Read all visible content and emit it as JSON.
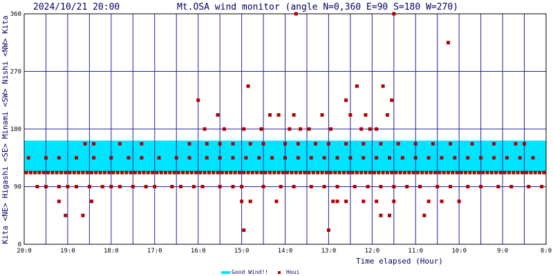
{
  "header": {
    "timestamp": "2024/10/21 20:00",
    "title": "Mt.OSA wind monitor (angle N=0,360 E=90 S=180 W=270)"
  },
  "left_axis_label": "Kita <NE> Higashi <SE> Minami <SW> Nishi <NW> Kita",
  "x_label": "Time elapsed (Hour)",
  "legend": [
    {
      "label": "Good Wind!!",
      "color": "#00e5ff",
      "kind": "band"
    },
    {
      "label": "Houi",
      "color": "#b00000",
      "kind": "marker"
    }
  ],
  "chart_data": {
    "type": "scatter",
    "title": "Mt.OSA wind monitor (angle N=0,360 E=90 S=180 W=270)",
    "xlabel": "Time elapsed (Hour)",
    "ylabel": "Kita <NE> Higashi <SE> Minami <SW> Nishi <NW> Kita",
    "x_ticks": [
      "20:0",
      "19:0",
      "18:0",
      "17:0",
      "16:0",
      "15:0",
      "14:0",
      "13:0",
      "12:0",
      "11:0",
      "10:0",
      "9:0",
      "8:0"
    ],
    "y_ticks": [
      0,
      90,
      180,
      270,
      360
    ],
    "ylim": [
      0,
      360
    ],
    "xlim_hours_elapsed": [
      0,
      12
    ],
    "good_wind_band": [
      112,
      162
    ],
    "grid": true,
    "series": [
      {
        "name": "Houi",
        "color": "#b00000",
        "marker": "square",
        "points": [
          [
            0.05,
            112
          ],
          [
            0.15,
            112
          ],
          [
            0.25,
            112
          ],
          [
            0.35,
            112
          ],
          [
            0.45,
            112
          ],
          [
            0.55,
            112
          ],
          [
            0.65,
            112
          ],
          [
            0.75,
            112
          ],
          [
            0.85,
            112
          ],
          [
            0.95,
            112
          ],
          [
            1.05,
            112
          ],
          [
            1.15,
            112
          ],
          [
            1.25,
            112
          ],
          [
            1.35,
            112
          ],
          [
            1.45,
            112
          ],
          [
            1.55,
            112
          ],
          [
            1.65,
            112
          ],
          [
            1.75,
            112
          ],
          [
            1.85,
            112
          ],
          [
            1.95,
            112
          ],
          [
            2.05,
            112
          ],
          [
            2.15,
            112
          ],
          [
            2.25,
            112
          ],
          [
            2.35,
            112
          ],
          [
            2.45,
            112
          ],
          [
            2.55,
            112
          ],
          [
            2.65,
            112
          ],
          [
            2.75,
            112
          ],
          [
            2.85,
            112
          ],
          [
            2.95,
            112
          ],
          [
            3.05,
            112
          ],
          [
            3.15,
            112
          ],
          [
            3.25,
            112
          ],
          [
            3.35,
            112
          ],
          [
            3.45,
            112
          ],
          [
            3.55,
            112
          ],
          [
            3.65,
            112
          ],
          [
            3.75,
            112
          ],
          [
            3.85,
            112
          ],
          [
            3.95,
            112
          ],
          [
            4.05,
            112
          ],
          [
            4.15,
            112
          ],
          [
            4.25,
            112
          ],
          [
            4.35,
            112
          ],
          [
            4.45,
            112
          ],
          [
            4.55,
            112
          ],
          [
            4.65,
            112
          ],
          [
            4.75,
            112
          ],
          [
            4.85,
            112
          ],
          [
            4.95,
            112
          ],
          [
            5.05,
            112
          ],
          [
            5.15,
            112
          ],
          [
            5.25,
            112
          ],
          [
            5.35,
            112
          ],
          [
            5.45,
            112
          ],
          [
            5.55,
            112
          ],
          [
            5.65,
            112
          ],
          [
            5.75,
            112
          ],
          [
            5.85,
            112
          ],
          [
            5.95,
            112
          ],
          [
            6.05,
            112
          ],
          [
            6.15,
            112
          ],
          [
            6.25,
            112
          ],
          [
            6.35,
            112
          ],
          [
            6.45,
            112
          ],
          [
            6.55,
            112
          ],
          [
            6.65,
            112
          ],
          [
            6.75,
            112
          ],
          [
            6.85,
            112
          ],
          [
            6.95,
            112
          ],
          [
            7.05,
            112
          ],
          [
            7.15,
            112
          ],
          [
            7.25,
            112
          ],
          [
            7.35,
            112
          ],
          [
            7.45,
            112
          ],
          [
            7.55,
            112
          ],
          [
            7.65,
            112
          ],
          [
            7.75,
            112
          ],
          [
            7.85,
            112
          ],
          [
            7.95,
            112
          ],
          [
            8.05,
            112
          ],
          [
            8.15,
            112
          ],
          [
            8.25,
            112
          ],
          [
            8.35,
            112
          ],
          [
            8.45,
            112
          ],
          [
            8.55,
            112
          ],
          [
            8.65,
            112
          ],
          [
            8.75,
            112
          ],
          [
            8.85,
            112
          ],
          [
            8.95,
            112
          ],
          [
            9.05,
            112
          ],
          [
            9.15,
            112
          ],
          [
            9.25,
            112
          ],
          [
            9.35,
            112
          ],
          [
            9.45,
            112
          ],
          [
            9.55,
            112
          ],
          [
            9.65,
            112
          ],
          [
            9.75,
            112
          ],
          [
            9.85,
            112
          ],
          [
            9.95,
            112
          ],
          [
            10.05,
            112
          ],
          [
            10.15,
            112
          ],
          [
            10.25,
            112
          ],
          [
            10.35,
            112
          ],
          [
            10.45,
            112
          ],
          [
            10.55,
            112
          ],
          [
            10.65,
            112
          ],
          [
            10.75,
            112
          ],
          [
            10.85,
            112
          ],
          [
            10.95,
            112
          ],
          [
            11.05,
            112
          ],
          [
            11.15,
            112
          ],
          [
            11.25,
            112
          ],
          [
            11.35,
            112
          ],
          [
            11.45,
            112
          ],
          [
            11.55,
            112
          ],
          [
            11.65,
            112
          ],
          [
            11.75,
            112
          ],
          [
            11.85,
            112
          ],
          [
            11.95,
            112
          ],
          [
            0.1,
            135
          ],
          [
            0.5,
            135
          ],
          [
            0.8,
            135
          ],
          [
            1.2,
            135
          ],
          [
            1.6,
            135
          ],
          [
            2.0,
            135
          ],
          [
            2.4,
            135
          ],
          [
            2.7,
            135
          ],
          [
            3.1,
            135
          ],
          [
            3.5,
            135
          ],
          [
            3.8,
            135
          ],
          [
            4.2,
            135
          ],
          [
            4.5,
            135
          ],
          [
            4.8,
            135
          ],
          [
            5.1,
            135
          ],
          [
            5.4,
            135
          ],
          [
            5.7,
            135
          ],
          [
            6.0,
            135
          ],
          [
            6.3,
            135
          ],
          [
            6.6,
            135
          ],
          [
            6.9,
            135
          ],
          [
            7.2,
            135
          ],
          [
            7.5,
            135
          ],
          [
            7.8,
            135
          ],
          [
            8.1,
            135
          ],
          [
            8.4,
            135
          ],
          [
            8.7,
            135
          ],
          [
            9.0,
            135
          ],
          [
            9.3,
            135
          ],
          [
            9.6,
            135
          ],
          [
            9.9,
            135
          ],
          [
            10.2,
            135
          ],
          [
            10.5,
            135
          ],
          [
            10.8,
            135
          ],
          [
            11.1,
            135
          ],
          [
            11.4,
            135
          ],
          [
            11.7,
            135
          ],
          [
            1.4,
            157
          ],
          [
            1.6,
            157
          ],
          [
            2.2,
            157
          ],
          [
            2.7,
            157
          ],
          [
            3.8,
            157
          ],
          [
            4.2,
            157
          ],
          [
            4.5,
            157
          ],
          [
            4.8,
            157
          ],
          [
            5.2,
            157
          ],
          [
            5.5,
            157
          ],
          [
            6.0,
            157
          ],
          [
            6.3,
            157
          ],
          [
            6.7,
            157
          ],
          [
            7.0,
            157
          ],
          [
            7.4,
            157
          ],
          [
            7.8,
            157
          ],
          [
            8.2,
            157
          ],
          [
            8.6,
            157
          ],
          [
            9.0,
            157
          ],
          [
            9.4,
            157
          ],
          [
            9.8,
            157
          ],
          [
            10.3,
            157
          ],
          [
            10.8,
            157
          ],
          [
            11.3,
            157
          ],
          [
            11.5,
            157
          ],
          [
            0.3,
            90
          ],
          [
            0.5,
            90
          ],
          [
            0.8,
            90
          ],
          [
            1.0,
            90
          ],
          [
            1.2,
            90
          ],
          [
            1.5,
            90
          ],
          [
            1.8,
            90
          ],
          [
            2.0,
            90
          ],
          [
            2.2,
            90
          ],
          [
            2.5,
            90
          ],
          [
            2.8,
            90
          ],
          [
            3.0,
            90
          ],
          [
            3.4,
            90
          ],
          [
            3.6,
            90
          ],
          [
            3.9,
            90
          ],
          [
            4.1,
            90
          ],
          [
            4.5,
            90
          ],
          [
            4.8,
            90
          ],
          [
            5.0,
            90
          ],
          [
            5.5,
            90
          ],
          [
            5.9,
            90
          ],
          [
            6.2,
            90
          ],
          [
            6.6,
            90
          ],
          [
            6.9,
            90
          ],
          [
            7.2,
            90
          ],
          [
            7.6,
            90
          ],
          [
            7.9,
            90
          ],
          [
            8.2,
            90
          ],
          [
            8.5,
            90
          ],
          [
            8.8,
            90
          ],
          [
            9.1,
            90
          ],
          [
            9.5,
            90
          ],
          [
            9.8,
            90
          ],
          [
            10.2,
            90
          ],
          [
            10.5,
            90
          ],
          [
            10.9,
            90
          ],
          [
            11.2,
            90
          ],
          [
            11.6,
            90
          ],
          [
            11.9,
            90
          ],
          [
            0.8,
            67
          ],
          [
            0.95,
            45
          ],
          [
            1.35,
            45
          ],
          [
            1.55,
            67
          ],
          [
            5.05,
            22
          ],
          [
            5.0,
            67
          ],
          [
            5.2,
            67
          ],
          [
            5.8,
            67
          ],
          [
            7.0,
            22
          ],
          [
            7.1,
            67
          ],
          [
            7.2,
            67
          ],
          [
            7.4,
            67
          ],
          [
            7.8,
            67
          ],
          [
            8.1,
            67
          ],
          [
            8.2,
            45
          ],
          [
            8.4,
            45
          ],
          [
            8.5,
            67
          ],
          [
            9.2,
            45
          ],
          [
            9.3,
            67
          ],
          [
            9.6,
            67
          ],
          [
            10.0,
            67
          ],
          [
            4.0,
            225
          ],
          [
            4.15,
            180
          ],
          [
            4.45,
            202
          ],
          [
            4.6,
            180
          ],
          [
            5.05,
            180
          ],
          [
            5.15,
            247
          ],
          [
            5.45,
            180
          ],
          [
            5.65,
            202
          ],
          [
            5.85,
            202
          ],
          [
            6.1,
            180
          ],
          [
            6.2,
            202
          ],
          [
            6.25,
            360
          ],
          [
            6.35,
            180
          ],
          [
            6.55,
            180
          ],
          [
            6.85,
            202
          ],
          [
            7.05,
            180
          ],
          [
            7.4,
            225
          ],
          [
            7.5,
            202
          ],
          [
            7.65,
            247
          ],
          [
            7.75,
            180
          ],
          [
            7.85,
            202
          ],
          [
            7.95,
            180
          ],
          [
            8.1,
            180
          ],
          [
            8.25,
            247
          ],
          [
            8.35,
            202
          ],
          [
            8.45,
            225
          ],
          [
            8.5,
            360
          ],
          [
            9.75,
            315
          ]
        ]
      }
    ]
  }
}
